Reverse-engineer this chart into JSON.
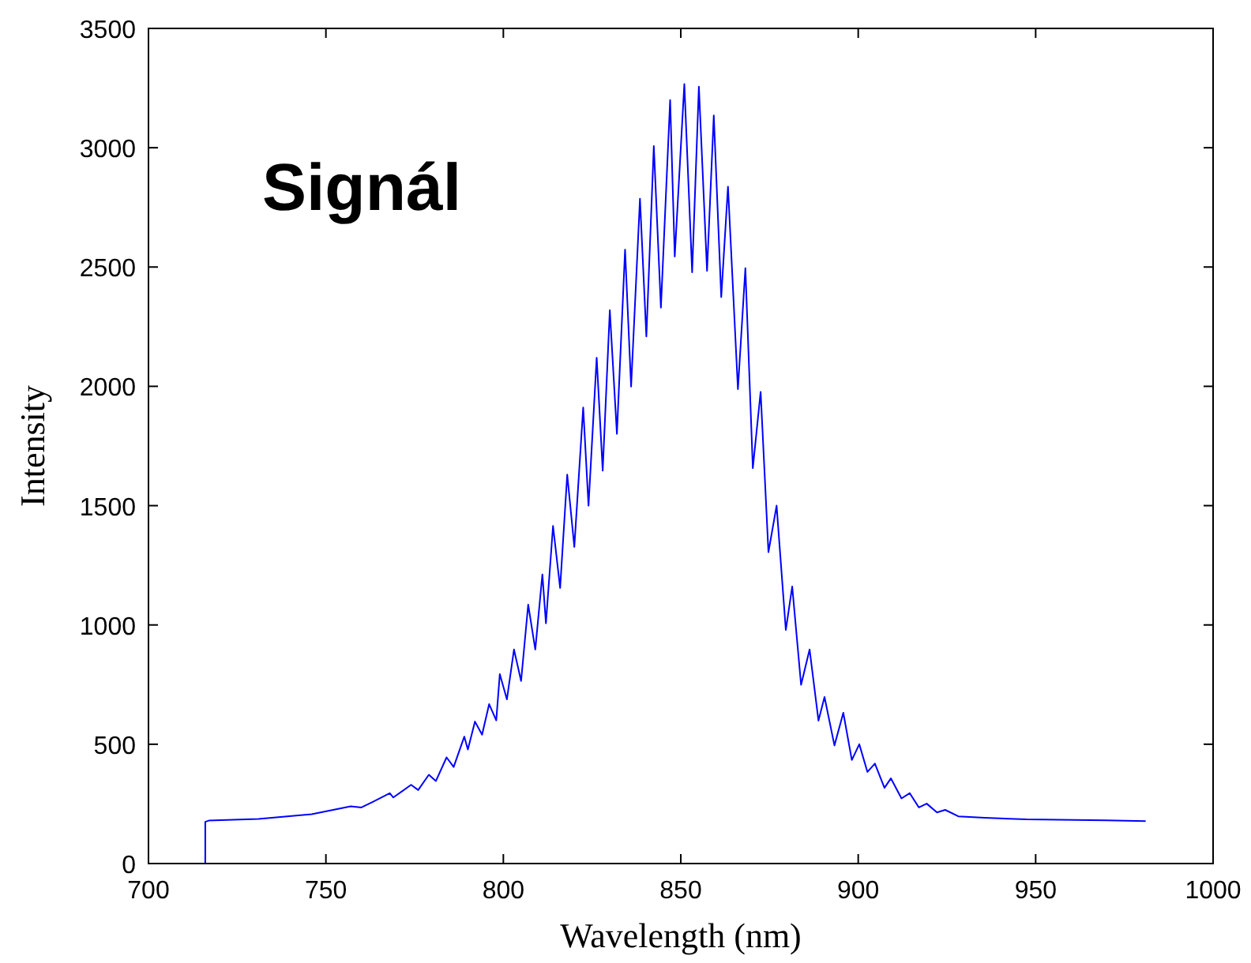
{
  "chart_data": {
    "type": "line",
    "title": "Signál",
    "xlabel": "Wavelength (nm)",
    "ylabel": "Intensity",
    "xlim": [
      700,
      1000
    ],
    "xticks": [
      700,
      750,
      800,
      850,
      900,
      950,
      1000
    ],
    "ylim": [
      0,
      3500
    ],
    "yticks": [
      0,
      500,
      1000,
      1500,
      2000,
      2500,
      3000,
      3500
    ],
    "grid": false,
    "marker": "none",
    "line_style": "solid",
    "series": [
      {
        "color": "#0000ff",
        "x": [
          716,
          716,
          717,
          731,
          746,
          757,
          760,
          763,
          768,
          769,
          774,
          776,
          779,
          781,
          784,
          786,
          789,
          790,
          792,
          794,
          796,
          798,
          799,
          801,
          803,
          805,
          807,
          809,
          811,
          812,
          814,
          816,
          818,
          820,
          822.5,
          824,
          826.3,
          828,
          830,
          832,
          834.3,
          836,
          838.5,
          840.3,
          842.4,
          844.4,
          847,
          848.3,
          851,
          853.2,
          855.1,
          857.4,
          859.3,
          861.4,
          863.3,
          866.1,
          868.2,
          870.3,
          872.5,
          874.7,
          877,
          879.6,
          881.4,
          883.9,
          886.3,
          888.8,
          890.5,
          893.3,
          895.8,
          898.2,
          900.3,
          902.6,
          904.7,
          907.4,
          909.2,
          912.2,
          914.5,
          917.1,
          919.3,
          922.2,
          924.5,
          928.2,
          935.6,
          947.5,
          969.8,
          981
        ],
        "values": [
          0,
          175,
          180,
          187,
          207,
          240,
          235,
          257,
          295,
          277,
          330,
          308,
          372,
          346,
          445,
          405,
          532,
          478,
          595,
          540,
          668,
          600,
          794,
          688,
          897,
          765,
          1085,
          897,
          1212,
          1007,
          1415,
          1155,
          1630,
          1327,
          1911,
          1500,
          2120,
          1647,
          2319,
          1801,
          2573,
          1999,
          2786,
          2209,
          3007,
          2330,
          3200,
          2544,
          3267,
          2478,
          3256,
          2484,
          3135,
          2374,
          2837,
          1988,
          2495,
          1657,
          1977,
          1305,
          1500,
          979,
          1161,
          749,
          897,
          599,
          698,
          495,
          632,
          434,
          500,
          384,
          419,
          317,
          357,
          273,
          295,
          235,
          251,
          214,
          225,
          198,
          192,
          185,
          181,
          178
        ]
      }
    ]
  }
}
